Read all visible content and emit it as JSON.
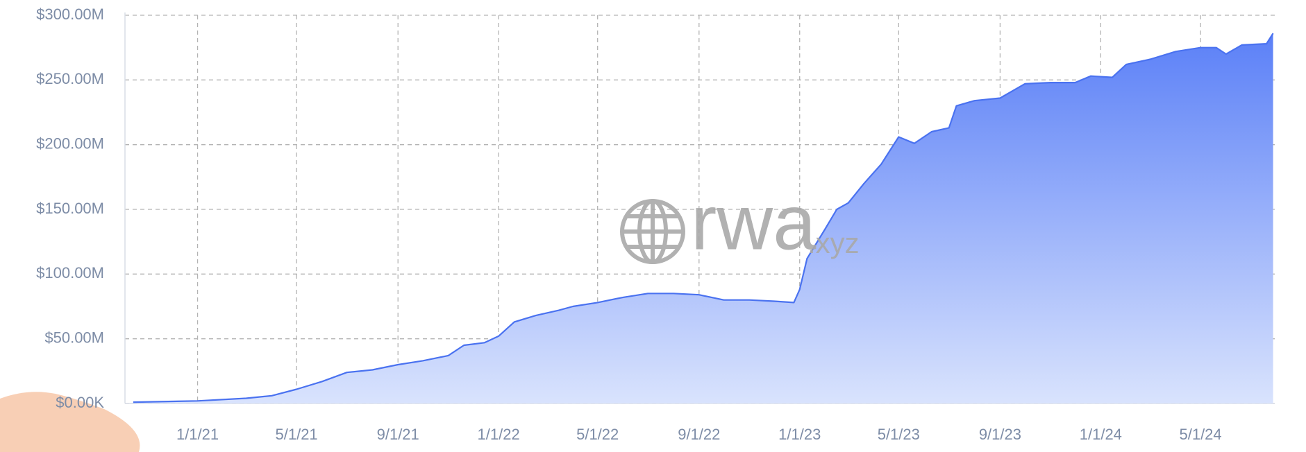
{
  "chart_data": {
    "type": "area",
    "x": [
      "10/15/20",
      "1/1/21",
      "3/1/21",
      "4/1/21",
      "5/1/21",
      "6/1/21",
      "7/1/21",
      "8/1/21",
      "9/1/21",
      "10/1/21",
      "11/1/21",
      "11/20/21",
      "12/15/21",
      "1/1/22",
      "1/20/22",
      "2/15/22",
      "3/15/22",
      "4/1/22",
      "5/1/22",
      "6/1/22",
      "7/1/22",
      "8/1/22",
      "9/1/22",
      "10/1/22",
      "11/1/22",
      "12/1/22",
      "12/25/22",
      "1/1/23",
      "1/10/23",
      "2/1/23",
      "2/15/23",
      "3/1/23",
      "3/20/23",
      "4/10/23",
      "5/1/23",
      "5/20/23",
      "6/10/23",
      "7/1/23",
      "7/10/23",
      "8/1/23",
      "9/1/23",
      "10/1/23",
      "11/1/23",
      "12/1/23",
      "12/20/23",
      "1/15/24",
      "2/1/24",
      "3/1/24",
      "4/1/24",
      "5/1/24",
      "5/20/24",
      "6/1/24",
      "6/20/24",
      "7/20/24",
      "7/28/24"
    ],
    "values": [
      1000000,
      2000000,
      4000000,
      6000000,
      11000000,
      17000000,
      24000000,
      26000000,
      30000000,
      33000000,
      37000000,
      45000000,
      47000000,
      52000000,
      63000000,
      68000000,
      72000000,
      75000000,
      78000000,
      82000000,
      85000000,
      85000000,
      84000000,
      80000000,
      80000000,
      79000000,
      78000000,
      88000000,
      112000000,
      135000000,
      150000000,
      155000000,
      170000000,
      185000000,
      206000000,
      201000000,
      210000000,
      213000000,
      230000000,
      234000000,
      236000000,
      247000000,
      248000000,
      248000000,
      253000000,
      252000000,
      262000000,
      266000000,
      272000000,
      275000000,
      275000000,
      270000000,
      277000000,
      278000000,
      286000000
    ],
    "color": "#4a72f0",
    "fill_colors": [
      "#5b80f7",
      "#d9e3fd"
    ],
    "xlim": [
      "10/5/20",
      "7/30/24"
    ],
    "xticks": [
      "1/1/21",
      "5/1/21",
      "9/1/21",
      "1/1/22",
      "5/1/22",
      "9/1/22",
      "1/1/23",
      "5/1/23",
      "9/1/23",
      "1/1/24",
      "5/1/24"
    ],
    "ylim": [
      0,
      300000000
    ],
    "yticks": [
      {
        "value": 0,
        "label": "$0.00K"
      },
      {
        "value": 50000000,
        "label": "$50.00M"
      },
      {
        "value": 100000000,
        "label": "$100.00M"
      },
      {
        "value": 150000000,
        "label": "$150.00M"
      },
      {
        "value": 200000000,
        "label": "$200.00M"
      },
      {
        "value": 250000000,
        "label": "$250.00M"
      },
      {
        "value": 300000000,
        "label": "$300.00M"
      }
    ],
    "grid": true,
    "watermark": [
      "rwa",
      ".xyz"
    ]
  }
}
